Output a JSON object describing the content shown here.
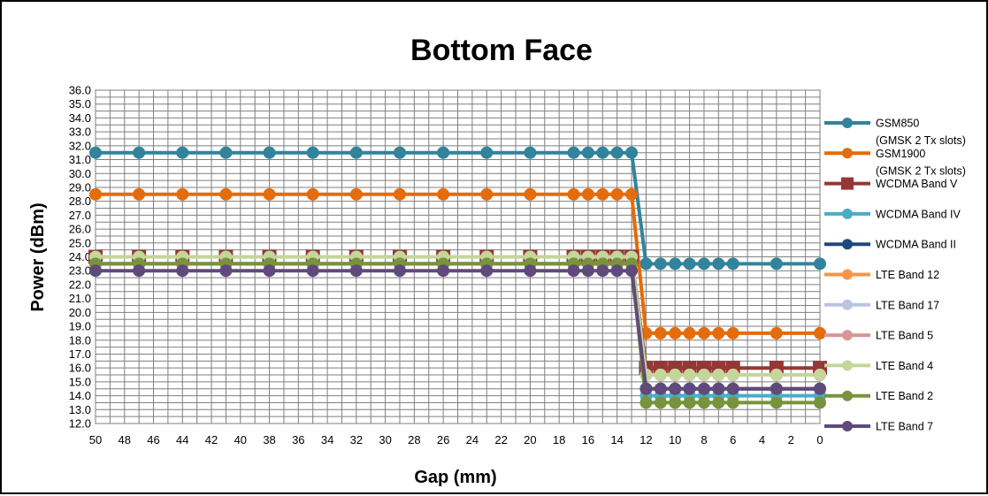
{
  "chart_data": {
    "type": "line",
    "title": "Bottom Face",
    "xlabel": "Gap (mm)",
    "ylabel": "Power (dBm)",
    "x_ticks": [
      "50",
      "48",
      "46",
      "44",
      "42",
      "40",
      "38",
      "36",
      "34",
      "32",
      "30",
      "28",
      "26",
      "24",
      "22",
      "20",
      "18",
      "16",
      "14",
      "12",
      "10",
      "8",
      "6",
      "4",
      "2",
      "0"
    ],
    "y_ticks": [
      "12.0",
      "13.0",
      "14.0",
      "15.0",
      "16.0",
      "17.0",
      "18.0",
      "19.0",
      "20.0",
      "21.0",
      "22.0",
      "23.0",
      "24.0",
      "25.0",
      "26.0",
      "27.0",
      "28.0",
      "29.0",
      "30.0",
      "31.0",
      "32.0",
      "33.0",
      "34.0",
      "35.0",
      "36.0"
    ],
    "xlim": [
      50,
      0
    ],
    "ylim": [
      12,
      36
    ],
    "grid": true,
    "legend_position": "right",
    "x": [
      50,
      47,
      44,
      41,
      38,
      35,
      32,
      29,
      26,
      23,
      20,
      17,
      16,
      15,
      14,
      13,
      12,
      11,
      10,
      9,
      8,
      7,
      6,
      3,
      0
    ],
    "series": [
      {
        "name": "GSM850",
        "name_line2": "(GMSK 2 Tx slots)",
        "color": "#31849B",
        "marker": "circle",
        "values": [
          31.5,
          31.5,
          31.5,
          31.5,
          31.5,
          31.5,
          31.5,
          31.5,
          31.5,
          31.5,
          31.5,
          31.5,
          31.5,
          31.5,
          31.5,
          31.5,
          23.5,
          23.5,
          23.5,
          23.5,
          23.5,
          23.5,
          23.5,
          23.5,
          23.5
        ]
      },
      {
        "name": "GSM1900",
        "name_line2": "(GMSK 2 Tx slots)",
        "color": "#E46C0A",
        "marker": "circle",
        "values": [
          28.5,
          28.5,
          28.5,
          28.5,
          28.5,
          28.5,
          28.5,
          28.5,
          28.5,
          28.5,
          28.5,
          28.5,
          28.5,
          28.5,
          28.5,
          28.5,
          18.5,
          18.5,
          18.5,
          18.5,
          18.5,
          18.5,
          18.5,
          18.5,
          18.5
        ]
      },
      {
        "name": "WCDMA Band V",
        "color": "#953735",
        "marker": "square",
        "values": [
          24.0,
          24.0,
          24.0,
          24.0,
          24.0,
          24.0,
          24.0,
          24.0,
          24.0,
          24.0,
          24.0,
          24.0,
          24.0,
          24.0,
          24.0,
          24.0,
          16.0,
          16.0,
          16.0,
          16.0,
          16.0,
          16.0,
          16.0,
          16.0,
          16.0
        ]
      },
      {
        "name": "WCDMA Band IV",
        "color": "#4BACC6",
        "marker": "circle",
        "values": [
          23.5,
          23.5,
          23.5,
          23.5,
          23.5,
          23.5,
          23.5,
          23.5,
          23.5,
          23.5,
          23.5,
          23.5,
          23.5,
          23.5,
          23.5,
          23.5,
          14.0,
          14.0,
          14.0,
          14.0,
          14.0,
          14.0,
          14.0,
          14.0,
          14.0
        ]
      },
      {
        "name": "WCDMA Band II",
        "color": "#1F497D",
        "marker": "circle",
        "values": [
          23.5,
          23.5,
          23.5,
          23.5,
          23.5,
          23.5,
          23.5,
          23.5,
          23.5,
          23.5,
          23.5,
          23.5,
          23.5,
          23.5,
          23.5,
          23.5,
          14.5,
          14.5,
          14.5,
          14.5,
          14.5,
          14.5,
          14.5,
          14.5,
          14.5
        ]
      },
      {
        "name": "LTE Band 12",
        "color": "#F79646",
        "marker": "circle",
        "values": [
          23.5,
          23.5,
          23.5,
          23.5,
          23.5,
          23.5,
          23.5,
          23.5,
          23.5,
          23.5,
          23.5,
          23.5,
          23.5,
          23.5,
          23.5,
          23.5,
          15.5,
          15.5,
          15.5,
          15.5,
          15.5,
          15.5,
          15.5,
          15.5,
          15.5
        ]
      },
      {
        "name": "LTE Band 17",
        "color": "#B9C5E3",
        "marker": "circle",
        "values": [
          23.5,
          23.5,
          23.5,
          23.5,
          23.5,
          23.5,
          23.5,
          23.5,
          23.5,
          23.5,
          23.5,
          23.5,
          23.5,
          23.5,
          23.5,
          23.5,
          15.5,
          15.5,
          15.5,
          15.5,
          15.5,
          15.5,
          15.5,
          15.5,
          15.5
        ]
      },
      {
        "name": "LTE Band 5",
        "color": "#D99694",
        "marker": "circle",
        "values": [
          23.5,
          23.5,
          23.5,
          23.5,
          23.5,
          23.5,
          23.5,
          23.5,
          23.5,
          23.5,
          23.5,
          23.5,
          23.5,
          23.5,
          23.5,
          23.5,
          15.5,
          15.5,
          15.5,
          15.5,
          15.5,
          15.5,
          15.5,
          15.5,
          15.5
        ]
      },
      {
        "name": "LTE Band 4",
        "color": "#C3D69B",
        "marker": "circle",
        "values": [
          24.0,
          24.0,
          24.0,
          24.0,
          24.0,
          24.0,
          24.0,
          24.0,
          24.0,
          24.0,
          24.0,
          24.0,
          24.0,
          24.0,
          24.0,
          24.0,
          15.5,
          15.5,
          15.5,
          15.5,
          15.5,
          15.5,
          15.5,
          15.5,
          15.5
        ]
      },
      {
        "name": "LTE Band 2",
        "color": "#77933C",
        "marker": "circle",
        "values": [
          23.5,
          23.5,
          23.5,
          23.5,
          23.5,
          23.5,
          23.5,
          23.5,
          23.5,
          23.5,
          23.5,
          23.5,
          23.5,
          23.5,
          23.5,
          23.5,
          13.5,
          13.5,
          13.5,
          13.5,
          13.5,
          13.5,
          13.5,
          13.5,
          13.5
        ]
      },
      {
        "name": "LTE Band 7",
        "color": "#604A7B",
        "marker": "circle",
        "values": [
          23.0,
          23.0,
          23.0,
          23.0,
          23.0,
          23.0,
          23.0,
          23.0,
          23.0,
          23.0,
          23.0,
          23.0,
          23.0,
          23.0,
          23.0,
          23.0,
          14.5,
          14.5,
          14.5,
          14.5,
          14.5,
          14.5,
          14.5,
          14.5,
          14.5
        ]
      }
    ]
  }
}
